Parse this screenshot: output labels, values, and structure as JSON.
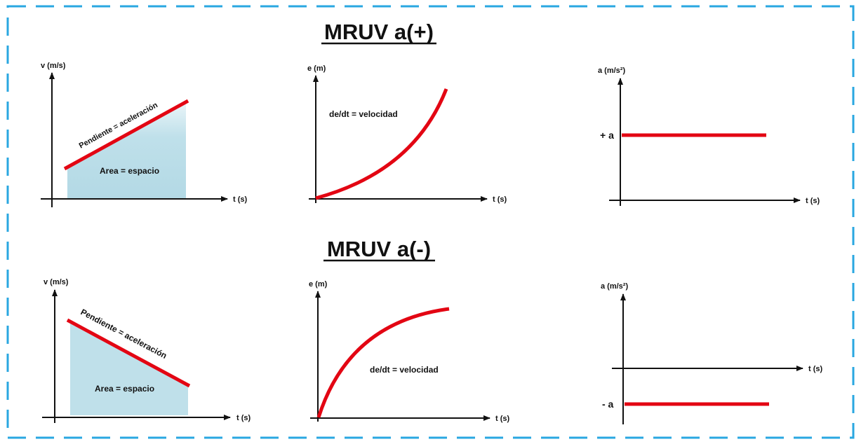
{
  "sections": [
    {
      "title": "MRUV a(+)",
      "velocity_plot": {
        "y_label": "v (m/s)",
        "x_label": "t (s)",
        "slope_note": "Pendiente = aceleración",
        "area_note": "Area = espacio"
      },
      "position_plot": {
        "y_label": "e (m)",
        "x_label": "t (s)",
        "note": "de/dt = velocidad"
      },
      "acceleration_plot": {
        "y_label": "a (m/s²)",
        "x_label": "t (s)",
        "level_label": "+ a"
      }
    },
    {
      "title": "MRUV a(-)",
      "velocity_plot": {
        "y_label": "v (m/s)",
        "x_label": "t (s)",
        "slope_note": "Pendiente = aceleración",
        "area_note": "Area = espacio"
      },
      "position_plot": {
        "y_label": "e (m)",
        "x_label": "t (s)",
        "note": "de/dt = velocidad"
      },
      "acceleration_plot": {
        "y_label": "a (m/s²)",
        "x_label": "t (s)",
        "level_label": "- a"
      }
    }
  ],
  "colors": {
    "border": "#29a7e1",
    "curve": "#e30613",
    "area": "#bfe0ea",
    "axis": "#111111"
  }
}
